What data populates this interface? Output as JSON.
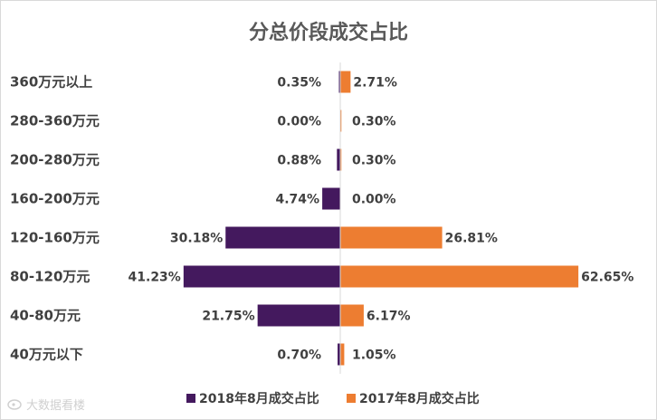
{
  "chart_data": {
    "type": "bar",
    "orientation": "horizontal-butterfly",
    "title": "分总价段成交占比",
    "categories": [
      "360万元以上",
      "280-360万元",
      "200-280万元",
      "160-200万元",
      "120-160万元",
      "80-120万元",
      "40-80万元",
      "40万元以下"
    ],
    "series": [
      {
        "name": "2018年8月成交占比",
        "color": "#44195e",
        "direction": "left",
        "values": [
          0.35,
          0.0,
          0.88,
          4.74,
          30.18,
          41.23,
          21.75,
          0.7
        ],
        "labels": [
          "0.35%",
          "0.00%",
          "0.88%",
          "4.74%",
          "30.18%",
          "41.23%",
          "21.75%",
          "0.70%"
        ]
      },
      {
        "name": "2017年8月成交占比",
        "color": "#ed7d31",
        "direction": "right",
        "values": [
          2.71,
          0.3,
          0.3,
          0.0,
          26.81,
          62.65,
          6.17,
          1.05
        ],
        "labels": [
          "2.71%",
          "0.30%",
          "0.30%",
          "0.00%",
          "26.81%",
          "62.65%",
          "6.17%",
          "1.05%"
        ]
      }
    ],
    "unit": "%",
    "legend_position": "bottom",
    "grid": false
  },
  "watermark": "大数据看楼"
}
